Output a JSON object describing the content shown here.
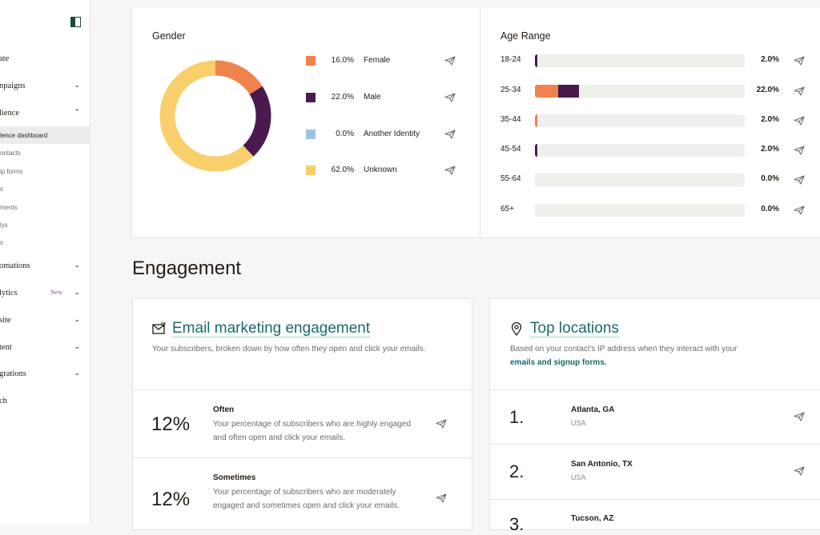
{
  "sidebar": {
    "items": [
      {
        "label": "ate",
        "chevron": ""
      },
      {
        "label": "npaigns",
        "chevron": "⌄"
      },
      {
        "label": "lience",
        "chevron": "⌃"
      },
      {
        "label": "omations",
        "chevron": "⌄"
      },
      {
        "label": "lytics",
        "chevron": "⌄",
        "badge": "New"
      },
      {
        "label": "site",
        "chevron": "⌄"
      },
      {
        "label": "tent",
        "chevron": "⌄"
      },
      {
        "label": "grations",
        "chevron": "⌄"
      },
      {
        "label": "ch",
        "chevron": ""
      }
    ],
    "subitems": [
      "lence dashboard",
      "ontacts",
      "ip forms",
      "s",
      "ments",
      "lys",
      "s"
    ]
  },
  "gender": {
    "title": "Gender",
    "rows": [
      {
        "pct": "16.0%",
        "label": "Female",
        "color": "#f0834b",
        "value": 16
      },
      {
        "pct": "22.0%",
        "label": "Male",
        "color": "#4a1a4f",
        "value": 22
      },
      {
        "pct": "0.0%",
        "label": "Another Identity",
        "color": "#9cc4e4",
        "value": 0
      },
      {
        "pct": "62.0%",
        "label": "Unknown",
        "color": "#f8cf6a",
        "value": 62
      }
    ]
  },
  "age": {
    "title": "Age Range",
    "rows": [
      {
        "label": "18-24",
        "pct": "2.0%",
        "segments": [
          {
            "color": "#4a1a4f",
            "value": 0.012
          }
        ]
      },
      {
        "label": "25-34",
        "pct": "22.0%",
        "segments": [
          {
            "color": "#f0834b",
            "value": 0.11
          },
          {
            "color": "#4a1a4f",
            "value": 0.1
          }
        ]
      },
      {
        "label": "35-44",
        "pct": "2.0%",
        "segments": [
          {
            "color": "#f0834b",
            "value": 0.012
          }
        ]
      },
      {
        "label": "45-54",
        "pct": "2.0%",
        "segments": [
          {
            "color": "#4a1a4f",
            "value": 0.012
          }
        ]
      },
      {
        "label": "55-64",
        "pct": "0.0%",
        "segments": []
      },
      {
        "label": "65+",
        "pct": "0.0%",
        "segments": []
      }
    ]
  },
  "engagement": {
    "title": "Engagement",
    "email": {
      "heading": "Email marketing engagement",
      "subtitle": "Your subscribers, broken down by how often they open and click your emails.",
      "rows": [
        {
          "pct": "12%",
          "title": "Often",
          "desc": "Your percentage of subscribers who are highly engaged and often open and click your emails."
        },
        {
          "pct": "12%",
          "title": "Sometimes",
          "desc": "Your percentage of subscribers who are moderately engaged and sometimes open and click your emails."
        }
      ]
    },
    "locations": {
      "heading": "Top locations",
      "subtitle_text": "Based on your contact's IP address when they interact with your",
      "subtitle_link": "emails and signup forms.",
      "rows": [
        {
          "rank": "1.",
          "city": "Atlanta, GA",
          "country": "USA"
        },
        {
          "rank": "2.",
          "city": "San Antonio, TX",
          "country": "USA"
        },
        {
          "rank": "3.",
          "city": "Tucson, AZ",
          "country": ""
        }
      ]
    }
  },
  "icons": {
    "send": "send-icon",
    "mail": "mail-icon",
    "pin": "location-pin-icon"
  }
}
